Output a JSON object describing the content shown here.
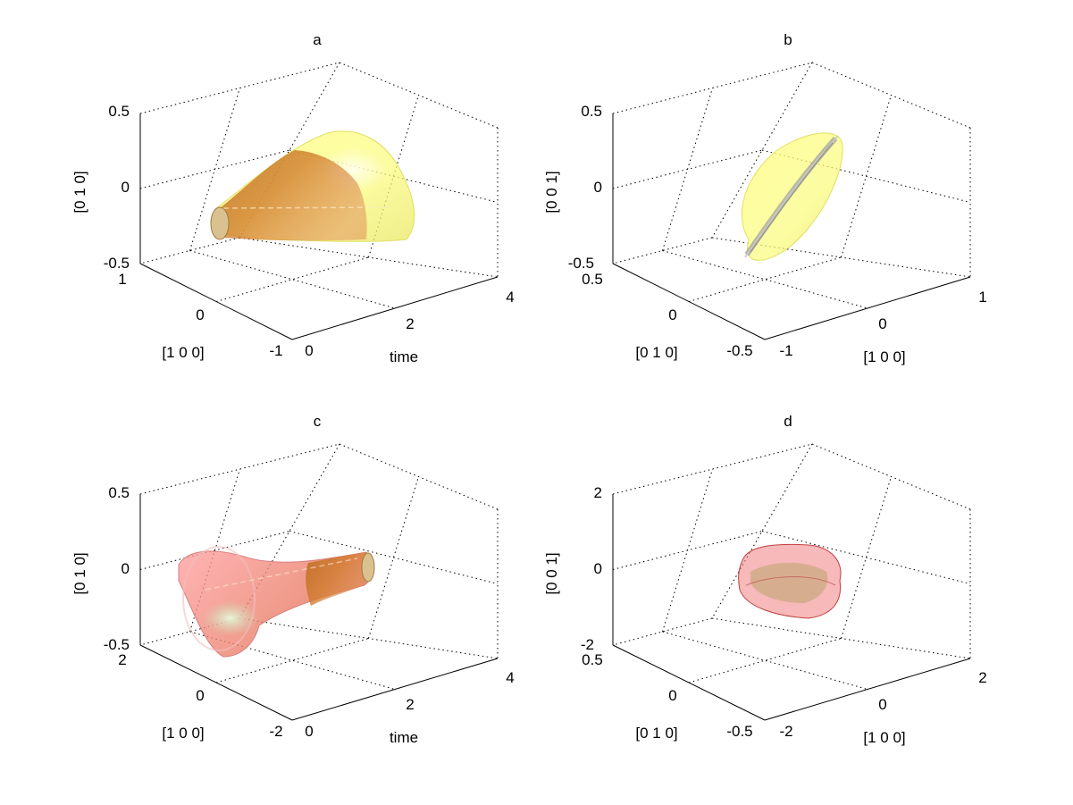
{
  "chart_data": [
    {
      "type": "surface3d",
      "panel": "a",
      "title": "a",
      "xlabel": "time",
      "ylabel": "[1 0 0]",
      "zlabel": "[0 1 0]",
      "xlim": [
        0,
        4
      ],
      "ylim": [
        -1,
        1
      ],
      "zlim": [
        -0.5,
        0.5
      ],
      "xticks": [
        "0",
        "2",
        "4"
      ],
      "yticks": [
        "-1",
        "0",
        "1"
      ],
      "zticks": [
        "-0.5",
        "0",
        "0.5"
      ],
      "grid": true,
      "series": [
        {
          "color": "#ffff66"
        },
        {
          "color": "#d2691e"
        }
      ]
    },
    {
      "type": "surface3d",
      "panel": "b",
      "title": "b",
      "xlabel": "[1 0 0]",
      "ylabel": "[0 1 0]",
      "zlabel": "[0 0 1]",
      "xlim": [
        -1,
        1
      ],
      "ylim": [
        -0.5,
        0.5
      ],
      "zlim": [
        -0.5,
        0.5
      ],
      "xticks": [
        "-1",
        "0",
        "1"
      ],
      "yticks": [
        "-0.5",
        "0",
        "0.5"
      ],
      "zticks": [
        "-0.5",
        "0",
        "0.5"
      ],
      "grid": true,
      "series": [
        {
          "color": "#ffff66"
        },
        {
          "color": "#b0b0b0"
        }
      ]
    },
    {
      "type": "surface3d",
      "panel": "c",
      "title": "c",
      "xlabel": "time",
      "ylabel": "[1 0 0]",
      "zlabel": "[0 1 0]",
      "xlim": [
        0,
        4
      ],
      "ylim": [
        -2,
        2
      ],
      "zlim": [
        -0.5,
        0.5
      ],
      "xticks": [
        "0",
        "2",
        "4"
      ],
      "yticks": [
        "-2",
        "0",
        "2"
      ],
      "zticks": [
        "-0.5",
        "0",
        "0.5"
      ],
      "grid": true,
      "series": [
        {
          "color": "#ff8080"
        },
        {
          "color": "#d2691e"
        }
      ]
    },
    {
      "type": "surface3d",
      "panel": "d",
      "title": "d",
      "xlabel": "[1 0 0]",
      "ylabel": "[0 1 0]",
      "zlabel": "[0 0 1]",
      "xlim": [
        -2,
        2
      ],
      "ylim": [
        -0.5,
        0.5
      ],
      "zlim": [
        -2,
        2
      ],
      "xticks": [
        "-2",
        "0",
        "2"
      ],
      "yticks": [
        "-0.5",
        "0",
        "0.5"
      ],
      "zticks": [
        "-2",
        "0",
        "2"
      ],
      "grid": true,
      "series": [
        {
          "color": "#e06060"
        },
        {
          "color": "#a0a040"
        }
      ]
    }
  ]
}
